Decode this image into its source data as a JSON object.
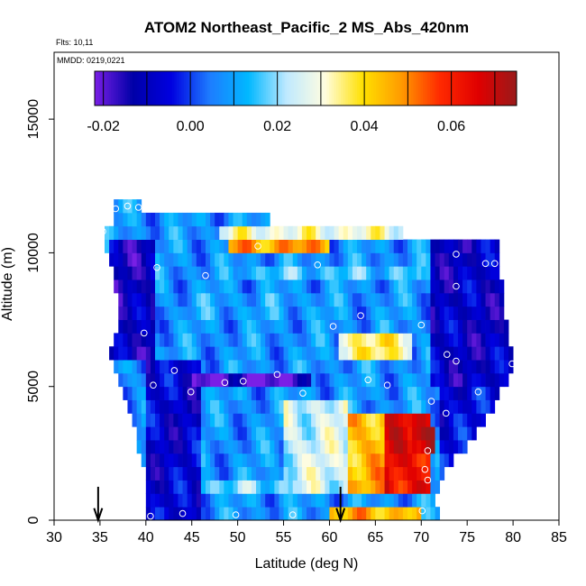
{
  "chart_data": {
    "type": "heatmap",
    "title": "ATOM2 Northeast_Pacific_2 MS_Abs_420nm",
    "flights_label": "Flts: 10,11",
    "mmdd_label": "MMDD: 0219,0221",
    "xlabel": "Latitude (deg N)",
    "ylabel": "Altitude (m)",
    "xlim": [
      30,
      85
    ],
    "ylim": [
      0,
      17500
    ],
    "x_ticks": [
      "30",
      "35",
      "40",
      "45",
      "50",
      "55",
      "60",
      "65",
      "70",
      "75",
      "80",
      "85"
    ],
    "y_ticks": [
      "0",
      "5000",
      "10000",
      "15000"
    ],
    "colorbar": {
      "min": -0.022,
      "max": 0.075,
      "ticks": [
        "-0.02",
        "0.00",
        "0.02",
        "0.04",
        "0.06"
      ],
      "tick_values": [
        -0.02,
        0.0,
        0.02,
        0.04,
        0.06
      ],
      "stops": [
        "#7a1fe6",
        "#0000a8",
        "#0000e0",
        "#1e7cff",
        "#00b8ff",
        "#bfe9ff",
        "#fffde0",
        "#ffe000",
        "#ff9a00",
        "#ff2a00",
        "#e00000",
        "#9a1a1a"
      ]
    },
    "altitude_bin_m": 500,
    "latitude_bin_deg": 0.5,
    "profile_bounds": [
      [
        0,
        40.0,
        72.0
      ],
      [
        500,
        40.0,
        71.5
      ],
      [
        1000,
        40.0,
        72.0
      ],
      [
        1500,
        40.0,
        72.5
      ],
      [
        2000,
        39.5,
        73.5
      ],
      [
        2500,
        39.0,
        75.0
      ],
      [
        3000,
        39.0,
        76.0
      ],
      [
        3500,
        38.5,
        77.0
      ],
      [
        4000,
        38.0,
        78.0
      ],
      [
        4500,
        37.5,
        78.5
      ],
      [
        5000,
        37.0,
        79.5
      ],
      [
        5500,
        36.5,
        80.0
      ],
      [
        6000,
        36.0,
        80.0
      ],
      [
        6500,
        36.5,
        79.5
      ],
      [
        7000,
        37.0,
        79.5
      ],
      [
        7500,
        37.0,
        79.0
      ],
      [
        8000,
        37.0,
        79.0
      ],
      [
        8500,
        36.5,
        79.0
      ],
      [
        9000,
        36.5,
        78.5
      ],
      [
        9500,
        36.0,
        78.5
      ],
      [
        10000,
        35.5,
        78.5
      ],
      [
        10500,
        35.5,
        68.0
      ],
      [
        11000,
        36.5,
        53.5
      ],
      [
        11500,
        36.5,
        39.5
      ]
    ],
    "color_features": [
      {
        "alt": [
          0,
          12000
        ],
        "lat": [
          30,
          90
        ],
        "value": 0.008
      },
      {
        "alt": [
          0,
          6000
        ],
        "lat": [
          40,
          46
        ],
        "value": -0.008
      },
      {
        "alt": [
          6000,
          10500
        ],
        "lat": [
          36,
          41
        ],
        "value": -0.012
      },
      {
        "alt": [
          1000,
          4500
        ],
        "lat": [
          55,
          62
        ],
        "value": 0.025
      },
      {
        "alt": [
          1000,
          4200
        ],
        "lat": [
          62,
          66
        ],
        "value": 0.045
      },
      {
        "alt": [
          1000,
          4000
        ],
        "lat": [
          66,
          71
        ],
        "value": 0.064
      },
      {
        "alt": [
          2500,
          3500
        ],
        "lat": [
          69,
          71.5
        ],
        "value": 0.073
      },
      {
        "alt": [
          0,
          500
        ],
        "lat": [
          60,
          70
        ],
        "value": 0.045
      },
      {
        "alt": [
          9800,
          10400
        ],
        "lat": [
          49,
          60
        ],
        "value": 0.048
      },
      {
        "alt": [
          10500,
          11200
        ],
        "lat": [
          48,
          68
        ],
        "value": 0.03
      },
      {
        "alt": [
          4800,
          5400
        ],
        "lat": [
          45,
          58
        ],
        "value": -0.02
      },
      {
        "alt": [
          6000,
          7000
        ],
        "lat": [
          61,
          69
        ],
        "value": 0.035
      },
      {
        "alt": [
          5000,
          12000
        ],
        "lat": [
          71,
          80
        ],
        "value": -0.01
      },
      {
        "alt": [
          0,
          5000
        ],
        "lat": [
          72,
          80
        ],
        "value": -0.006
      },
      {
        "alt": [
          1000,
          1500
        ],
        "lat": [
          46,
          56
        ],
        "value": 0.018
      },
      {
        "alt": [
          7500,
          8500
        ],
        "lat": [
          44,
          60
        ],
        "value": 0.01
      },
      {
        "alt": [
          8800,
          9400
        ],
        "lat": [
          50,
          70
        ],
        "value": 0.015
      }
    ],
    "sample_points": [
      [
        36.7,
        11650
      ],
      [
        38.0,
        11750
      ],
      [
        39.2,
        11700
      ],
      [
        35.3,
        10800
      ],
      [
        41.2,
        9450
      ],
      [
        46.5,
        9150
      ],
      [
        52.2,
        10250
      ],
      [
        58.7,
        9550
      ],
      [
        73.8,
        9950
      ],
      [
        77.0,
        9600
      ],
      [
        78.0,
        9600
      ],
      [
        73.8,
        8750
      ],
      [
        63.4,
        7650
      ],
      [
        60.4,
        7250
      ],
      [
        70.0,
        7300
      ],
      [
        39.8,
        7000
      ],
      [
        72.8,
        6200
      ],
      [
        73.8,
        5950
      ],
      [
        43.1,
        5600
      ],
      [
        54.3,
        5450
      ],
      [
        40.8,
        5050
      ],
      [
        44.9,
        4800
      ],
      [
        48.6,
        5150
      ],
      [
        50.6,
        5200
      ],
      [
        57.1,
        4750
      ],
      [
        64.2,
        5250
      ],
      [
        66.3,
        5050
      ],
      [
        71.1,
        4450
      ],
      [
        72.7,
        4000
      ],
      [
        76.2,
        4800
      ],
      [
        79.9,
        5850
      ],
      [
        70.7,
        2600
      ],
      [
        70.4,
        1900
      ],
      [
        70.7,
        1500
      ],
      [
        40.5,
        150
      ],
      [
        44.0,
        250
      ],
      [
        49.8,
        200
      ],
      [
        56.0,
        200
      ],
      [
        70.1,
        350
      ]
    ],
    "arrows_lat": [
      34.8,
      61.2
    ]
  }
}
